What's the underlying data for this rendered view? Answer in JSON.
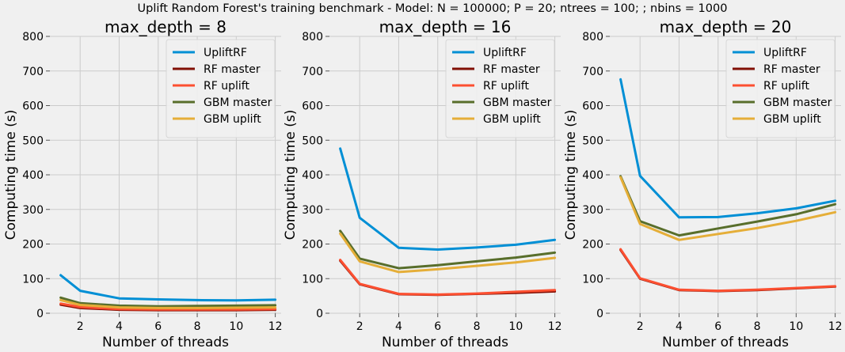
{
  "figure": {
    "suptitle": "Uplift Random Forest's training benchmark - Model: N = 100000; P = 20; ntrees = 100; ; nbins = 1000"
  },
  "chart_data": [
    {
      "type": "line",
      "title": "max_depth = 8",
      "xlabel": "Number of threads",
      "ylabel": "Computing time (s)",
      "x": [
        1,
        2,
        4,
        6,
        8,
        10,
        12
      ],
      "xticks": [
        2,
        4,
        6,
        8,
        10,
        12
      ],
      "xlim": [
        0.45,
        12.3
      ],
      "ylim": [
        0,
        800
      ],
      "yticks": [
        0,
        100,
        200,
        300,
        400,
        500,
        600,
        700,
        800
      ],
      "grid": true,
      "legend_position": "top-right",
      "series": [
        {
          "name": "UpliftRF",
          "color": "#008fd5",
          "values": [
            110,
            65,
            43,
            40,
            38,
            37,
            39
          ]
        },
        {
          "name": "RF master",
          "color": "#810f05",
          "values": [
            25,
            15,
            10,
            9,
            9,
            9,
            10
          ]
        },
        {
          "name": "RF uplift",
          "color": "#fc4f30",
          "values": [
            28,
            18,
            12,
            11,
            11,
            11,
            12
          ]
        },
        {
          "name": "GBM master",
          "color": "#586e2b",
          "values": [
            45,
            29,
            22,
            20,
            21,
            22,
            23
          ]
        },
        {
          "name": "GBM uplift",
          "color": "#e5ae38",
          "values": [
            38,
            24,
            17,
            15,
            15,
            16,
            17
          ]
        }
      ]
    },
    {
      "type": "line",
      "title": "max_depth = 16",
      "xlabel": "Number of threads",
      "ylabel": "Computing time (s)",
      "x": [
        1,
        2,
        4,
        6,
        8,
        10,
        12
      ],
      "xticks": [
        2,
        4,
        6,
        8,
        10,
        12
      ],
      "xlim": [
        0.45,
        12.3
      ],
      "ylim": [
        0,
        800
      ],
      "yticks": [
        0,
        100,
        200,
        300,
        400,
        500,
        600,
        700,
        800
      ],
      "grid": true,
      "legend_position": "top-right",
      "series": [
        {
          "name": "UpliftRF",
          "color": "#008fd5",
          "values": [
            476,
            276,
            189,
            184,
            190,
            198,
            212
          ]
        },
        {
          "name": "RF master",
          "color": "#810f05",
          "values": [
            152,
            84,
            55,
            53,
            56,
            59,
            63
          ]
        },
        {
          "name": "RF uplift",
          "color": "#fc4f30",
          "values": [
            154,
            85,
            56,
            54,
            57,
            62,
            67
          ]
        },
        {
          "name": "GBM master",
          "color": "#586e2b",
          "values": [
            238,
            158,
            130,
            139,
            150,
            161,
            175
          ]
        },
        {
          "name": "GBM uplift",
          "color": "#e5ae38",
          "values": [
            230,
            150,
            119,
            127,
            137,
            147,
            160
          ]
        }
      ]
    },
    {
      "type": "line",
      "title": "max_depth = 20",
      "xlabel": "Number of threads",
      "ylabel": "Computing time (s)",
      "x": [
        1,
        2,
        4,
        6,
        8,
        10,
        12
      ],
      "xticks": [
        2,
        4,
        6,
        8,
        10,
        12
      ],
      "xlim": [
        0.45,
        12.3
      ],
      "ylim": [
        0,
        800
      ],
      "yticks": [
        0,
        100,
        200,
        300,
        400,
        500,
        600,
        700,
        800
      ],
      "grid": true,
      "legend_position": "top-right",
      "series": [
        {
          "name": "UpliftRF",
          "color": "#008fd5",
          "values": [
            676,
            397,
            277,
            278,
            289,
            303,
            325
          ]
        },
        {
          "name": "RF master",
          "color": "#810f05",
          "values": [
            183,
            100,
            67,
            64,
            67,
            72,
            77
          ]
        },
        {
          "name": "RF uplift",
          "color": "#fc4f30",
          "values": [
            185,
            101,
            68,
            65,
            68,
            73,
            78
          ]
        },
        {
          "name": "GBM master",
          "color": "#586e2b",
          "values": [
            396,
            266,
            225,
            245,
            265,
            286,
            315
          ]
        },
        {
          "name": "GBM uplift",
          "color": "#e5ae38",
          "values": [
            393,
            258,
            212,
            229,
            246,
            267,
            292
          ]
        }
      ]
    }
  ]
}
